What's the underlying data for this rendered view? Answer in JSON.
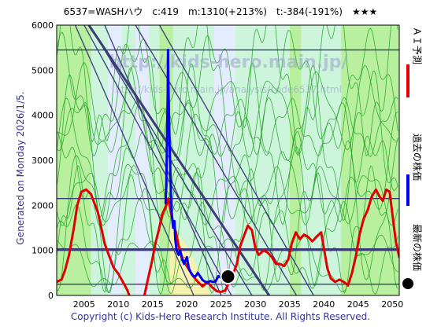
{
  "header": {
    "text": "6537=WASHハウ　c:419　m:1310(+213%)　t:-384(-191%)　★★★"
  },
  "footer": {
    "text": "Copyright (c) Kids-Hero Research Institute. All Rights Reserved."
  },
  "side_label": {
    "text": "Generated on Monday 2026/1/5."
  },
  "watermark": {
    "line1": "http://kids-hero.main.jp/",
    "line2": "http://kids-hero.main.jp/analysis/code6537.html"
  },
  "legend": [
    {
      "label": "ＡＩ予測",
      "color": "#e00000",
      "kind": "line"
    },
    {
      "label": "過去の株価",
      "color": "#0000ee",
      "kind": "line"
    },
    {
      "label": "最新の株価",
      "color": "#000000",
      "kind": "dot"
    }
  ],
  "colors": {
    "ai": "#e00000",
    "past": "#0000ee",
    "latest": "#000000",
    "green_fill": "#b8f0a0",
    "light_green": "#ccf5dc",
    "pale_blue": "#e4ecff",
    "yellow": "#f6f3b0",
    "sim": "#1ca01c",
    "channel": "#3b3b78",
    "grid": "#3b3b78"
  },
  "chart_data": {
    "type": "line",
    "x_axis": {
      "min": 2001,
      "max": 2051,
      "ticks": [
        2005,
        2010,
        2015,
        2020,
        2025,
        2030,
        2035,
        2040,
        2045,
        2050
      ]
    },
    "y_axis": {
      "min": 0,
      "max": 6000,
      "ticks": [
        0,
        1000,
        2000,
        3000,
        4000,
        5000,
        6000
      ]
    },
    "hlines": [
      {
        "y": 5450,
        "w": 1.4
      },
      {
        "y": 2150,
        "w": 1.4
      },
      {
        "y": 1020,
        "w": 3
      },
      {
        "y": 1000,
        "w": 1.4
      },
      {
        "y": 250,
        "w": 1.4
      }
    ],
    "diagonals": [
      {
        "x1": 2003.7,
        "y1": 6000,
        "x2": 2021.0,
        "y2": 0,
        "w": 1.3
      },
      {
        "x1": 2008.0,
        "y1": 6000,
        "x2": 2025.0,
        "y2": 0,
        "w": 1.3
      },
      {
        "x1": 2005.0,
        "y1": 6000,
        "x2": 2026.5,
        "y2": 0,
        "w": 1.3
      },
      {
        "x1": 2005.8,
        "y1": 6000,
        "x2": 2029.5,
        "y2": 0,
        "w": 1.3
      },
      {
        "x1": 2005.7,
        "y1": 6000,
        "x2": 2032.0,
        "y2": 0,
        "w": 3
      },
      {
        "x1": 2012.5,
        "y1": 6000,
        "x2": 2036.0,
        "y2": 0,
        "w": 1.3
      },
      {
        "x1": 2016.0,
        "y1": 6000,
        "x2": 2038.5,
        "y2": 0,
        "w": 1.3
      }
    ],
    "bands": [
      {
        "x1": 2001,
        "x2": 2006.0,
        "color": "green_fill"
      },
      {
        "x1": 2006.0,
        "x2": 2008.5,
        "color": "light_green"
      },
      {
        "x1": 2008.5,
        "x2": 2010.5,
        "color": "pale_blue"
      },
      {
        "x1": 2010.5,
        "x2": 2012.5,
        "color": "light_green"
      },
      {
        "x1": 2012.5,
        "x2": 2014.5,
        "color": "pale_blue"
      },
      {
        "x1": 2014.5,
        "x2": 2016.0,
        "color": "light_green"
      },
      {
        "x1": 2016.0,
        "x2": 2018.0,
        "color": "green_fill"
      },
      {
        "x1": 2018.0,
        "x2": 2024.0,
        "color": "light_green"
      },
      {
        "x1": 2024.0,
        "x2": 2027.0,
        "color": "pale_blue"
      },
      {
        "x1": 2027.0,
        "x2": 2035.0,
        "color": "light_green"
      },
      {
        "x1": 2035.0,
        "x2": 2036.7,
        "color": "green_fill"
      },
      {
        "x1": 2036.7,
        "x2": 2042.5,
        "color": "light_green"
      },
      {
        "x1": 2042.5,
        "x2": 2051.0,
        "color": "green_fill"
      }
    ],
    "yellow_zone": [
      [
        2017.5,
        0
      ],
      [
        2017.5,
        1600
      ],
      [
        2020.0,
        1100
      ],
      [
        2023.5,
        0
      ]
    ],
    "series": [
      {
        "name": "ＡＩ予測",
        "color": "ai",
        "points": [
          [
            2001.0,
            300
          ],
          [
            2001.7,
            350
          ],
          [
            2002.2,
            550
          ],
          [
            2002.8,
            900
          ],
          [
            2003.5,
            1500
          ],
          [
            2004.0,
            2000
          ],
          [
            2004.6,
            2300
          ],
          [
            2005.3,
            2350
          ],
          [
            2006.0,
            2250
          ],
          [
            2006.5,
            2050
          ],
          [
            2007.0,
            1850
          ],
          [
            2007.5,
            1500
          ],
          [
            2008.0,
            1150
          ],
          [
            2008.6,
            900
          ],
          [
            2009.3,
            620
          ],
          [
            2010.0,
            480
          ],
          [
            2010.6,
            320
          ],
          [
            2011.3,
            120
          ],
          [
            2011.6,
            0
          ]
        ]
      },
      {
        "name": "ＡＩ予測",
        "color": "ai",
        "points": [
          [
            2013.8,
            0
          ],
          [
            2014.3,
            350
          ],
          [
            2014.9,
            750
          ],
          [
            2015.4,
            1150
          ],
          [
            2015.9,
            1450
          ],
          [
            2016.4,
            1800
          ],
          [
            2017.0,
            2000
          ],
          [
            2017.3,
            2150
          ],
          [
            2017.6,
            1900
          ],
          [
            2018.0,
            1600
          ],
          [
            2018.4,
            1400
          ],
          [
            2018.8,
            1100
          ],
          [
            2019.4,
            800
          ],
          [
            2020.0,
            650
          ],
          [
            2020.8,
            450
          ],
          [
            2021.5,
            320
          ],
          [
            2022.3,
            200
          ],
          [
            2023.0,
            300
          ],
          [
            2023.7,
            180
          ],
          [
            2024.4,
            90
          ],
          [
            2025.0,
            80
          ],
          [
            2025.6,
            110
          ],
          [
            2026.2,
            300
          ],
          [
            2026.8,
            500
          ],
          [
            2027.3,
            700
          ],
          [
            2027.8,
            1100
          ],
          [
            2028.4,
            1350
          ],
          [
            2028.9,
            1550
          ],
          [
            2029.5,
            1450
          ],
          [
            2030.0,
            1050
          ],
          [
            2030.5,
            900
          ],
          [
            2031.2,
            1000
          ],
          [
            2031.8,
            950
          ],
          [
            2032.4,
            850
          ],
          [
            2033.0,
            700
          ],
          [
            2033.6,
            700
          ],
          [
            2034.2,
            650
          ],
          [
            2034.8,
            800
          ],
          [
            2035.3,
            1150
          ],
          [
            2035.9,
            1400
          ],
          [
            2036.5,
            1250
          ],
          [
            2037.1,
            1350
          ],
          [
            2037.7,
            1300
          ],
          [
            2038.3,
            1200
          ],
          [
            2038.9,
            1300
          ],
          [
            2039.6,
            1400
          ],
          [
            2040.0,
            1050
          ],
          [
            2040.5,
            600
          ],
          [
            2041.0,
            380
          ],
          [
            2041.6,
            300
          ],
          [
            2042.3,
            350
          ],
          [
            2042.9,
            300
          ],
          [
            2043.5,
            220
          ],
          [
            2044.1,
            500
          ],
          [
            2044.7,
            900
          ],
          [
            2045.2,
            1350
          ],
          [
            2045.8,
            1700
          ],
          [
            2046.4,
            1900
          ],
          [
            2047.0,
            2200
          ],
          [
            2047.6,
            2350
          ],
          [
            2048.1,
            2200
          ],
          [
            2048.6,
            2100
          ],
          [
            2049.1,
            2350
          ],
          [
            2049.6,
            2300
          ],
          [
            2050.0,
            1800
          ],
          [
            2050.5,
            1200
          ],
          [
            2051.0,
            850
          ]
        ]
      },
      {
        "name": "過去の株価",
        "color": "past",
        "points": [
          [
            2016.9,
            2050
          ],
          [
            2017.0,
            2500
          ],
          [
            2017.1,
            3500
          ],
          [
            2017.2,
            4400
          ],
          [
            2017.25,
            5450
          ],
          [
            2017.3,
            4800
          ],
          [
            2017.4,
            3900
          ],
          [
            2017.5,
            3200
          ],
          [
            2017.6,
            2700
          ],
          [
            2017.7,
            2100
          ],
          [
            2017.8,
            1800
          ],
          [
            2018.0,
            1500
          ],
          [
            2018.2,
            1650
          ],
          [
            2018.3,
            1250
          ],
          [
            2018.5,
            1000
          ],
          [
            2018.8,
            900
          ],
          [
            2019.0,
            1000
          ],
          [
            2019.3,
            800
          ],
          [
            2019.6,
            700
          ],
          [
            2020.0,
            850
          ],
          [
            2020.3,
            600
          ],
          [
            2020.6,
            500
          ],
          [
            2021.0,
            420
          ],
          [
            2021.3,
            430
          ],
          [
            2021.6,
            500
          ],
          [
            2022.0,
            410
          ],
          [
            2022.3,
            340
          ],
          [
            2022.6,
            310
          ],
          [
            2023.0,
            290
          ],
          [
            2023.4,
            320
          ],
          [
            2023.8,
            300
          ],
          [
            2024.2,
            310
          ],
          [
            2024.6,
            430
          ],
          [
            2025.0,
            390
          ],
          [
            2025.3,
            420
          ]
        ]
      }
    ],
    "latest": {
      "x": 2026.0,
      "y": 419
    }
  }
}
